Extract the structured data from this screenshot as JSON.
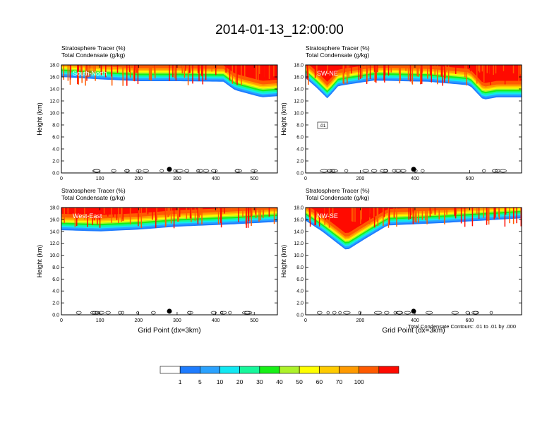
{
  "title": "2014-01-13_12:00:00",
  "panel_header_line1": "Stratosphere Tracer   (%)",
  "panel_header_line2": "Total Condensate   (g/kg)",
  "y_axis_label": "Height (km)",
  "x_axis_label": "Grid Point (dx=3km)",
  "contour_note": "Total Condensate Contours: .01 to .01 by .000",
  "contour_label": ".01",
  "colorbar": {
    "colors": [
      "#ffffff",
      "#1e7cff",
      "#2ba2ff",
      "#12e8f2",
      "#17f79c",
      "#17f017",
      "#adf22a",
      "#ffff00",
      "#ffcb00",
      "#ff9a00",
      "#ff5a00",
      "#ff0a00"
    ],
    "labels": [
      "1",
      "5",
      "10",
      "20",
      "30",
      "40",
      "50",
      "60",
      "70",
      "100"
    ]
  },
  "chart_data": [
    {
      "type": "heatmap",
      "panel": "South-North",
      "title_label": "South-North",
      "xlim": [
        0,
        560
      ],
      "ylim": [
        0,
        18
      ],
      "x_ticks": [
        0,
        100,
        200,
        300,
        400,
        500
      ],
      "y_ticks": [
        "0.0",
        "2.0",
        "4.0",
        "6.0",
        "8.0",
        "10.0",
        "12.0",
        "14.0",
        "16.0",
        "18.0"
      ],
      "stratosphere_base_km": [
        [
          0,
          16.0
        ],
        [
          100,
          15.6
        ],
        [
          200,
          15.3
        ],
        [
          300,
          15.3
        ],
        [
          420,
          15.2
        ],
        [
          450,
          13.8
        ],
        [
          520,
          12.6
        ],
        [
          560,
          12.8
        ]
      ],
      "marker_x": 280
    },
    {
      "type": "heatmap",
      "panel": "SW-NE",
      "title_label": "SW-NE",
      "xlim": [
        0,
        790
      ],
      "ylim": [
        0,
        18
      ],
      "x_ticks": [
        0,
        200,
        400,
        600
      ],
      "y_ticks": [
        "0.0",
        "2.0",
        "4.0",
        "6.0",
        "8.0",
        "10.0",
        "12.0",
        "14.0",
        "16.0",
        "18.0"
      ],
      "stratosphere_base_km": [
        [
          0,
          15.8
        ],
        [
          40,
          14.2
        ],
        [
          80,
          12.4
        ],
        [
          120,
          14.5
        ],
        [
          250,
          15.4
        ],
        [
          450,
          15.2
        ],
        [
          600,
          14.6
        ],
        [
          650,
          12.2
        ],
        [
          700,
          12.6
        ],
        [
          790,
          12.6
        ]
      ],
      "marker_x": 395
    },
    {
      "type": "heatmap",
      "panel": "West-East",
      "title_label": "West-East",
      "xlim": [
        0,
        560
      ],
      "ylim": [
        0,
        18
      ],
      "x_ticks": [
        0,
        100,
        200,
        300,
        400,
        500
      ],
      "y_ticks": [
        "0.0",
        "2.0",
        "4.0",
        "6.0",
        "8.0",
        "10.0",
        "12.0",
        "14.0",
        "16.0",
        "18.0"
      ],
      "stratosphere_base_km": [
        [
          0,
          14.2
        ],
        [
          100,
          14.0
        ],
        [
          200,
          14.3
        ],
        [
          300,
          14.8
        ],
        [
          450,
          15.2
        ],
        [
          560,
          15.6
        ]
      ],
      "marker_x": 280
    },
    {
      "type": "heatmap",
      "panel": "NW-SE",
      "title_label": "NW-SE",
      "xlim": [
        0,
        790
      ],
      "ylim": [
        0,
        18
      ],
      "x_ticks": [
        0,
        200,
        400,
        600
      ],
      "y_ticks": [
        "0.0",
        "2.0",
        "4.0",
        "6.0",
        "8.0",
        "10.0",
        "12.0",
        "14.0",
        "16.0",
        "18.0"
      ],
      "stratosphere_base_km": [
        [
          0,
          15.8
        ],
        [
          60,
          14.0
        ],
        [
          150,
          10.8
        ],
        [
          220,
          12.8
        ],
        [
          300,
          15.0
        ],
        [
          500,
          15.4
        ],
        [
          790,
          16.2
        ]
      ],
      "marker_x": 395
    }
  ]
}
